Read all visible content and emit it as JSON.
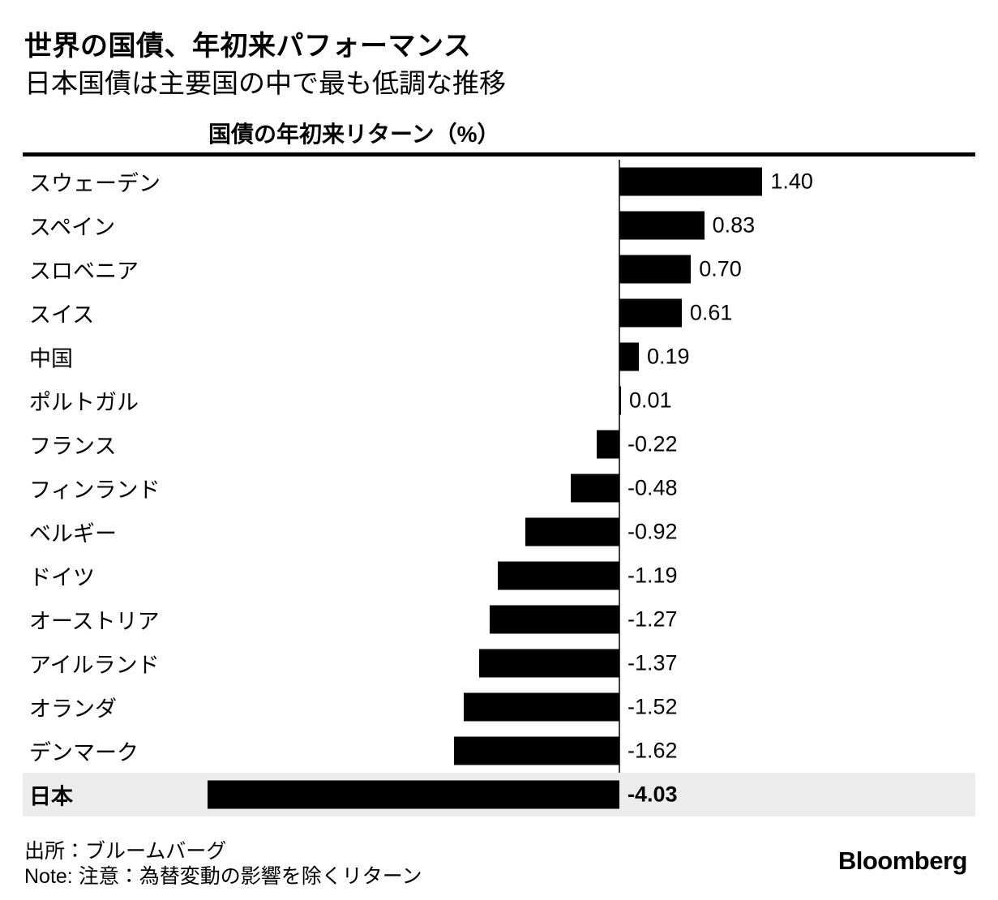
{
  "header": {
    "title": "世界の国債、年初来パフォーマンス",
    "subtitle": "日本国債は主要国の中で最も低調な推移"
  },
  "chart_data": {
    "type": "bar",
    "orientation": "horizontal",
    "title": "国債の年初来リターン（%）",
    "categories": [
      "スウェーデン",
      "スペイン",
      "スロベニア",
      "スイス",
      "中国",
      "ポルトガル",
      "フランス",
      "フィンランド",
      "ベルギー",
      "ドイツ",
      "オーストリア",
      "アイルランド",
      "オランダ",
      "デンマーク",
      "日本"
    ],
    "values": [
      1.4,
      0.83,
      0.7,
      0.61,
      0.19,
      0.01,
      -0.22,
      -0.48,
      -0.92,
      -1.19,
      -1.27,
      -1.37,
      -1.52,
      -1.62,
      -4.03
    ],
    "value_labels": [
      "1.40",
      "0.83",
      "0.70",
      "0.61",
      "0.19",
      "0.01",
      "-0.22",
      "-0.48",
      "-0.92",
      "-1.19",
      "-1.27",
      "-1.37",
      "-1.52",
      "-1.62",
      "-4.03"
    ],
    "xlim": [
      -4.2,
      1.6
    ],
    "zero_line": true,
    "legend_position": "none",
    "grid": false,
    "highlighted_category": "日本",
    "bar_color": "#000000",
    "highlight_row_color": "#ececec"
  },
  "footer": {
    "source": "出所：ブルームバーグ",
    "note": "Note: 注意：為替変動の影響を除くリターン",
    "logo": "Bloomberg"
  }
}
